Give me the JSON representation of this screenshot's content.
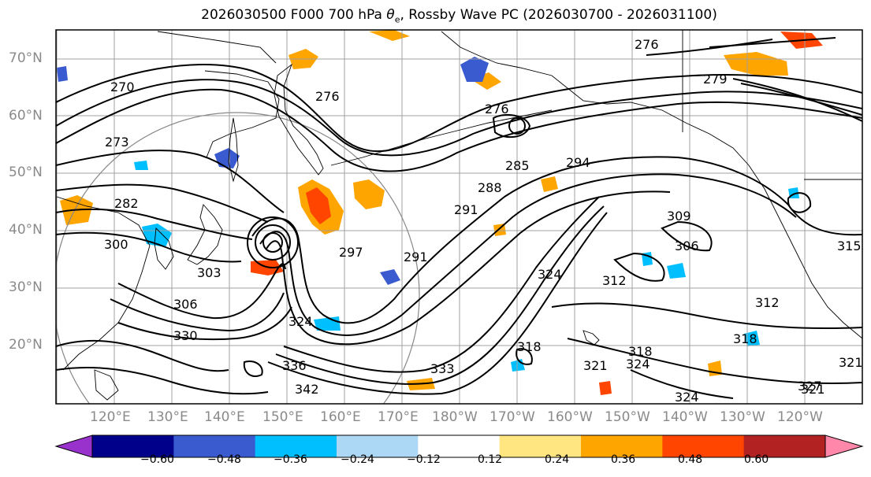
{
  "title_main": "2026030500 F000 700 hPa ",
  "title_sym": "θ",
  "title_sub": "e",
  "title_rest": ", Rossby Wave PC (2026030700 - 2026031100)",
  "lat_labels": [
    "70°N",
    "60°N",
    "50°N",
    "40°N",
    "30°N",
    "20°N"
  ],
  "lon_labels": [
    "120°E",
    "130°E",
    "140°E",
    "150°E",
    "160°E",
    "170°E",
    "180°W",
    "170°W",
    "160°W",
    "150°W",
    "140°W",
    "130°W",
    "120°W"
  ],
  "contour_labels": [
    "276",
    "279",
    "270",
    "276",
    "276",
    "273",
    "294",
    "282",
    "291",
    "288",
    "285",
    "309",
    "306",
    "300",
    "297",
    "291",
    "303",
    "324",
    "312",
    "306",
    "312",
    "315",
    "324",
    "318",
    "330",
    "318",
    "318",
    "321",
    "324",
    "333",
    "336",
    "342",
    "321",
    "327",
    "324",
    "321"
  ],
  "colorbar": {
    "colors": [
      "#9932cc",
      "#00008b",
      "#3a5bd0",
      "#00bfff",
      "#add8f5",
      "#ffffff",
      "#ffe680",
      "#ffa500",
      "#ff4500",
      "#b22222",
      "#ff88aa"
    ],
    "tick_labels": [
      "−0.60",
      "−0.48",
      "−0.36",
      "−0.24",
      "−0.12",
      "0.12",
      "0.24",
      "0.36",
      "0.48",
      "0.60"
    ]
  },
  "colors": {
    "contour": "#000000",
    "gridline": "#a0a0a0",
    "coastline": "#000000",
    "axis_label": "#8a8a8a"
  }
}
